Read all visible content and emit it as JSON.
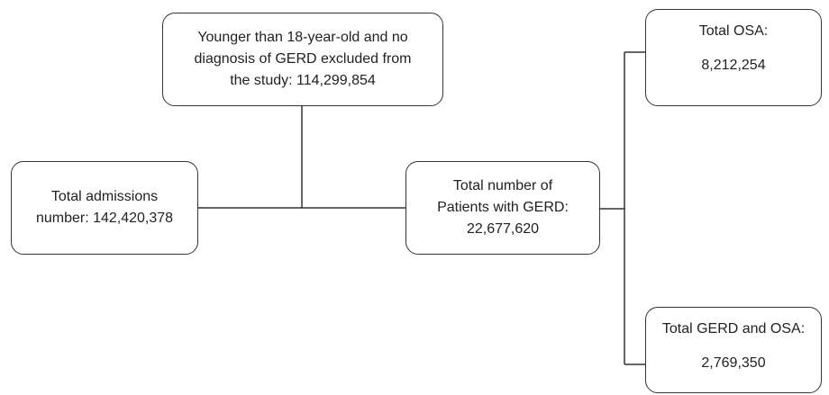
{
  "boxes": {
    "excluded": {
      "lines": [
        "Younger than 18-year-old and no",
        "diagnosis of GERD excluded from",
        "the study: 114,299,854"
      ]
    },
    "admissions": {
      "lines": [
        "Total admissions",
        "number: 142,420,378"
      ]
    },
    "gerd": {
      "lines": [
        "Total number of",
        "Patients with GERD:",
        "22,677,620"
      ]
    },
    "osa": {
      "lines": [
        "Total OSA:",
        "8,212,254"
      ]
    },
    "gerd_osa": {
      "lines": [
        "Total GERD and OSA:",
        "2,769,350"
      ]
    }
  },
  "line_color": "#333333"
}
